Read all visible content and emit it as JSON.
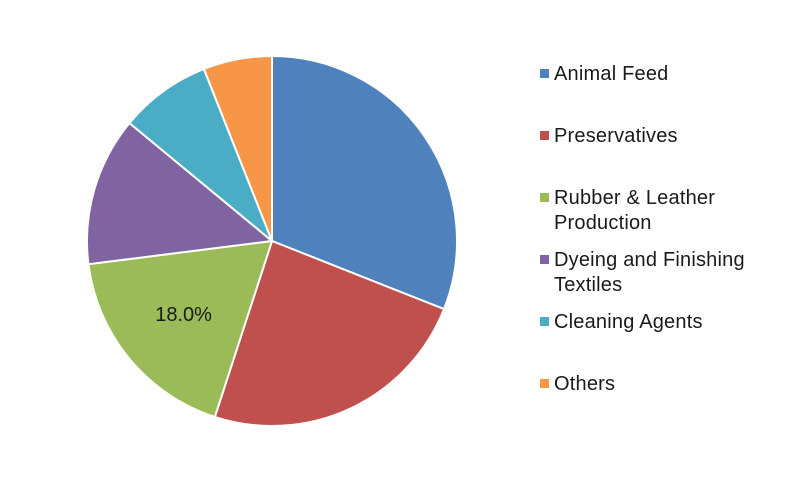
{
  "chart_data": {
    "type": "pie",
    "title": "",
    "slices": [
      {
        "name": "Animal Feed",
        "value": 31.0,
        "color": "#4F81BD"
      },
      {
        "name": "Preservatives",
        "value": 24.0,
        "color": "#C0504D"
      },
      {
        "name": "Rubber & Leather\nProduction",
        "value": 18.0,
        "color": "#9BBB59",
        "label": "18.0%"
      },
      {
        "name": "Dyeing and Finishing\nTextiles",
        "value": 13.0,
        "color": "#8064A2"
      },
      {
        "name": "Cleaning Agents",
        "value": 8.0,
        "color": "#4BACC6"
      },
      {
        "name": "Others",
        "value": 6.0,
        "color": "#F79646"
      }
    ],
    "legend_position": "right"
  }
}
